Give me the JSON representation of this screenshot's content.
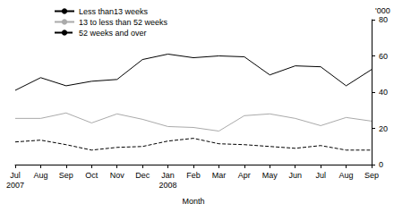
{
  "chart_data": {
    "type": "line",
    "x_label": "Month",
    "y_label": "'000",
    "categories": [
      "Jul\n2007",
      "Aug",
      "Sep",
      "Oct",
      "Nov",
      "Dec",
      "Jan\n2008",
      "Feb",
      "Mar",
      "Apr",
      "May",
      "Jun",
      "Jul",
      "Aug",
      "Sep"
    ],
    "series": [
      {
        "name": "Less than13 weeks",
        "color": "#000000",
        "line_style": "solid",
        "marker": "none",
        "values": [
          41,
          48,
          43.5,
          46,
          47,
          58,
          61,
          59,
          60,
          59.5,
          49.5,
          54.5,
          54,
          43.5,
          52.5
        ]
      },
      {
        "name": "13 to less than 52 weeks",
        "color": "#aaaaaa",
        "line_style": "solid",
        "marker": "none",
        "values": [
          25.5,
          25.5,
          28.5,
          23,
          28,
          25,
          21,
          20.5,
          18.5,
          27,
          28,
          25.5,
          21.5,
          26,
          24
        ]
      },
      {
        "name": "52 weeks and over",
        "color": "#000000",
        "line_style": "dashed",
        "marker": "none",
        "values": [
          12.5,
          13.5,
          11,
          8,
          9.5,
          10,
          13,
          14.5,
          11.5,
          11,
          10,
          9,
          10.5,
          8,
          8
        ]
      }
    ],
    "ylim": [
      0,
      80
    ],
    "yticks": [
      0,
      20,
      40,
      60,
      80
    ],
    "grid": false,
    "legend": "upper left"
  }
}
